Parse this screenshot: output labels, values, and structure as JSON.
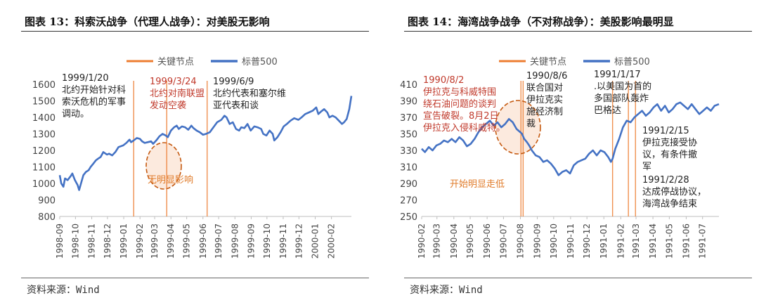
{
  "chart_data": [
    {
      "type": "line",
      "title": "图表 13：科索沃战争（代理人战争）：对美股无影响",
      "source": "资料来源：Wind",
      "legend": [
        "关键节点",
        "标普500"
      ],
      "legend_placement": "top",
      "ylim": [
        800,
        1600
      ],
      "yticks": [
        "1600",
        "1500",
        "1400",
        "1300",
        "1200",
        "1100",
        "1000",
        "900",
        "800"
      ],
      "xticks": [
        "1998-09",
        "1998-10",
        "1998-11",
        "1998-12",
        "1999-01",
        "1999-02",
        "1999-03",
        "1999-04",
        "1999-05",
        "1999-06",
        "1999-07",
        "1999-08",
        "1999-09",
        "1999-10",
        "1999-11",
        "1999-12",
        "2000-01",
        "2000-02"
      ],
      "x_start": "1998-09-01",
      "x_end": "2000-03-10",
      "key_dates": [
        "1999-01-20",
        "1999-03-24",
        "1999-06-09"
      ],
      "series": [
        {
          "name": "标普500",
          "color": "#4472c4",
          "x": [
            "1998-09-01",
            "1998-09-04",
            "1998-09-08",
            "1998-09-11",
            "1998-09-16",
            "1998-09-22",
            "1998-09-25",
            "1998-09-30",
            "1998-10-05",
            "1998-10-08",
            "1998-10-12",
            "1998-10-16",
            "1998-10-21",
            "1998-10-26",
            "1998-10-30",
            "1998-11-04",
            "1998-11-09",
            "1998-11-13",
            "1998-11-18",
            "1998-11-23",
            "1998-11-30",
            "1998-12-04",
            "1998-12-10",
            "1998-12-16",
            "1998-12-22",
            "1998-12-31",
            "1999-01-06",
            "1999-01-12",
            "1999-01-15",
            "1999-01-20",
            "1999-01-26",
            "1999-02-01",
            "1999-02-05",
            "1999-02-10",
            "1999-02-16",
            "1999-02-22",
            "1999-02-26",
            "1999-03-04",
            "1999-03-10",
            "1999-03-16",
            "1999-03-22",
            "1999-03-26",
            "1999-04-01",
            "1999-04-07",
            "1999-04-12",
            "1999-04-16",
            "1999-04-22",
            "1999-04-28",
            "1999-05-04",
            "1999-05-10",
            "1999-05-14",
            "1999-05-20",
            "1999-05-26",
            "1999-06-01",
            "1999-06-07",
            "1999-06-14",
            "1999-06-21",
            "1999-06-28",
            "1999-07-06",
            "1999-07-12",
            "1999-07-16",
            "1999-07-22",
            "1999-07-28",
            "1999-08-03",
            "1999-08-09",
            "1999-08-13",
            "1999-08-19",
            "1999-08-25",
            "1999-08-31",
            "1999-09-07",
            "1999-09-13",
            "1999-09-20",
            "1999-09-24",
            "1999-09-30",
            "1999-10-06",
            "1999-10-12",
            "1999-10-15",
            "1999-10-21",
            "1999-10-27",
            "1999-11-02",
            "1999-11-08",
            "1999-11-15",
            "1999-11-22",
            "1999-11-30",
            "1999-12-06",
            "1999-12-13",
            "1999-12-20",
            "1999-12-27",
            "2000-01-03",
            "2000-01-07",
            "2000-01-12",
            "2000-01-18",
            "2000-01-24",
            "2000-01-28",
            "2000-02-03",
            "2000-02-09",
            "2000-02-15",
            "2000-02-21",
            "2000-02-25",
            "2000-03-01",
            "2000-03-06",
            "2000-03-10"
          ],
          "values": [
            1050,
            1000,
            980,
            1030,
            1020,
            1045,
            1060,
            1020,
            990,
            960,
            1005,
            1050,
            1070,
            1080,
            1100,
            1120,
            1140,
            1150,
            1160,
            1190,
            1175,
            1180,
            1170,
            1190,
            1220,
            1230,
            1245,
            1265,
            1250,
            1260,
            1275,
            1270,
            1255,
            1245,
            1250,
            1255,
            1240,
            1260,
            1285,
            1300,
            1290,
            1280,
            1320,
            1340,
            1350,
            1330,
            1345,
            1340,
            1325,
            1350,
            1335,
            1320,
            1310,
            1295,
            1300,
            1310,
            1340,
            1370,
            1385,
            1410,
            1400,
            1360,
            1370,
            1330,
            1320,
            1340,
            1335,
            1360,
            1320,
            1345,
            1340,
            1330,
            1300,
            1290,
            1320,
            1300,
            1260,
            1280,
            1310,
            1345,
            1360,
            1380,
            1395,
            1385,
            1400,
            1420,
            1430,
            1440,
            1460,
            1420,
            1435,
            1450,
            1430,
            1400,
            1410,
            1400,
            1380,
            1360,
            1370,
            1390,
            1450,
            1530
          ]
        }
      ],
      "annotations": [
        {
          "text": [
            "1999/1/20",
            "北约开始针对科",
            "索沃危机的军事",
            "调动。"
          ],
          "color": "#222222"
        },
        {
          "text": [
            "1999/3/24",
            "北约对南联盟",
            "发动空袭"
          ],
          "color": "#c0392b"
        },
        {
          "text": [
            "1999/6/9",
            "北约代表和塞尔维",
            "亚代表和谈"
          ],
          "color": "#222222"
        },
        {
          "text": [
            "无明显影响"
          ],
          "color": "#e07b2a"
        }
      ]
    },
    {
      "type": "line",
      "title": "图表 14：海湾战争战争（不对称战争）：美股影响最明显",
      "source": "资料来源：Wind",
      "legend": [
        "关键节点",
        "标普500"
      ],
      "legend_placement": "top",
      "ylim": [
        250,
        410
      ],
      "yticks": [
        "410",
        "390",
        "370",
        "350",
        "330",
        "310",
        "290",
        "270",
        "250"
      ],
      "xticks": [
        "1990-02",
        "1990-03",
        "1990-04",
        "1990-05",
        "1990-06",
        "1990-07",
        "1990-08",
        "1990-09",
        "1990-10",
        "1990-11",
        "1990-12",
        "1991-01",
        "1991-02",
        "1991-03",
        "1991-04",
        "1991-05",
        "1991-06",
        "1991-07"
      ],
      "x_start": "1990-02-01",
      "x_end": "1991-07-31",
      "key_dates": [
        "1990-08-02",
        "1990-08-06",
        "1991-01-17",
        "1991-02-15",
        "1991-02-28"
      ],
      "series": [
        {
          "name": "标普500",
          "color": "#4472c4",
          "x": [
            "1990-02-01",
            "1990-02-07",
            "1990-02-14",
            "1990-02-21",
            "1990-02-28",
            "1990-03-07",
            "1990-03-14",
            "1990-03-21",
            "1990-03-28",
            "1990-04-04",
            "1990-04-11",
            "1990-04-18",
            "1990-04-25",
            "1990-05-02",
            "1990-05-09",
            "1990-05-16",
            "1990-05-23",
            "1990-05-30",
            "1990-06-06",
            "1990-06-13",
            "1990-06-20",
            "1990-06-27",
            "1990-07-04",
            "1990-07-11",
            "1990-07-18",
            "1990-07-25",
            "1990-08-01",
            "1990-08-04",
            "1990-08-08",
            "1990-08-13",
            "1990-08-17",
            "1990-08-22",
            "1990-08-29",
            "1990-09-05",
            "1990-09-12",
            "1990-09-19",
            "1990-09-26",
            "1990-10-03",
            "1990-10-10",
            "1990-10-17",
            "1990-10-24",
            "1990-10-31",
            "1990-11-07",
            "1990-11-14",
            "1990-11-21",
            "1990-11-28",
            "1990-12-05",
            "1990-12-12",
            "1990-12-19",
            "1990-12-26",
            "1991-01-02",
            "1991-01-09",
            "1991-01-14",
            "1991-01-17",
            "1991-01-22",
            "1991-01-29",
            "1991-02-05",
            "1991-02-12",
            "1991-02-19",
            "1991-02-26",
            "1991-03-05",
            "1991-03-12",
            "1991-03-19",
            "1991-03-26",
            "1991-04-02",
            "1991-04-09",
            "1991-04-16",
            "1991-04-23",
            "1991-04-30",
            "1991-05-07",
            "1991-05-14",
            "1991-05-21",
            "1991-05-28",
            "1991-06-04",
            "1991-06-11",
            "1991-06-18",
            "1991-06-25",
            "1991-07-02",
            "1991-07-09",
            "1991-07-16",
            "1991-07-23",
            "1991-07-31"
          ],
          "values": [
            332,
            328,
            334,
            330,
            336,
            338,
            342,
            340,
            344,
            340,
            346,
            342,
            335,
            338,
            344,
            352,
            358,
            362,
            366,
            360,
            364,
            358,
            362,
            368,
            364,
            356,
            352,
            350,
            344,
            340,
            336,
            330,
            324,
            322,
            316,
            318,
            314,
            308,
            300,
            304,
            306,
            302,
            312,
            316,
            318,
            320,
            326,
            330,
            324,
            330,
            328,
            322,
            316,
            320,
            332,
            344,
            358,
            366,
            364,
            370,
            374,
            378,
            372,
            376,
            382,
            386,
            378,
            384,
            376,
            380,
            386,
            388,
            384,
            380,
            386,
            380,
            374,
            378,
            382,
            378,
            384,
            386
          ]
        }
      ],
      "annotations": [
        {
          "text": [
            "1990/8/2",
            "伊拉克与科威特围",
            "绕石油问题的谈判",
            "宣告破裂。8月2日",
            "伊拉克入侵科威特。"
          ],
          "color": "#c0392b"
        },
        {
          "text": [
            "1990/8/6",
            "联合国对",
            "伊拉克实",
            "施经济制",
            "裁"
          ],
          "color": "#222222"
        },
        {
          "text": [
            "1991/1/17",
            ".以美国为首的",
            "多国部队轰炸",
            "巴格达"
          ],
          "color": "#222222"
        },
        {
          "text": [
            "1991/2/15",
            "伊拉克接受协",
            "议，有条件撤",
            "军"
          ],
          "color": "#222222"
        },
        {
          "text": [
            "1991/2/28",
            "达成停战协议，",
            "海湾战争结束"
          ],
          "color": "#222222"
        },
        {
          "text": [
            "开始明显走低"
          ],
          "color": "#e07b2a"
        }
      ]
    }
  ]
}
